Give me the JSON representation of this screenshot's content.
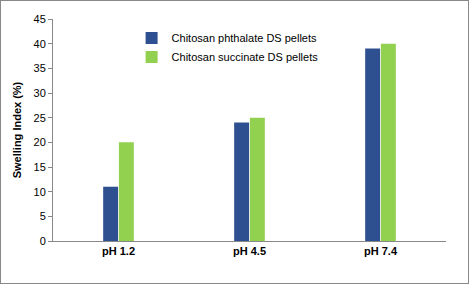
{
  "chart_data": {
    "type": "bar",
    "y_label": "Swelling Index (%)",
    "categories": [
      "pH 1.2",
      "pH 4.5",
      "pH 7.4"
    ],
    "series": [
      {
        "name": "Chitosan phthalate DS pellets",
        "color": "#2E5090",
        "values": [
          11,
          24,
          39
        ]
      },
      {
        "name": "Chitosan succinate DS pellets",
        "color": "#92D050",
        "values": [
          20,
          25,
          40
        ]
      }
    ],
    "ylim": [
      0,
      45
    ],
    "yticks": [
      0,
      5,
      10,
      15,
      20,
      25,
      30,
      35,
      40,
      45
    ],
    "grid": false,
    "legend": "top"
  }
}
